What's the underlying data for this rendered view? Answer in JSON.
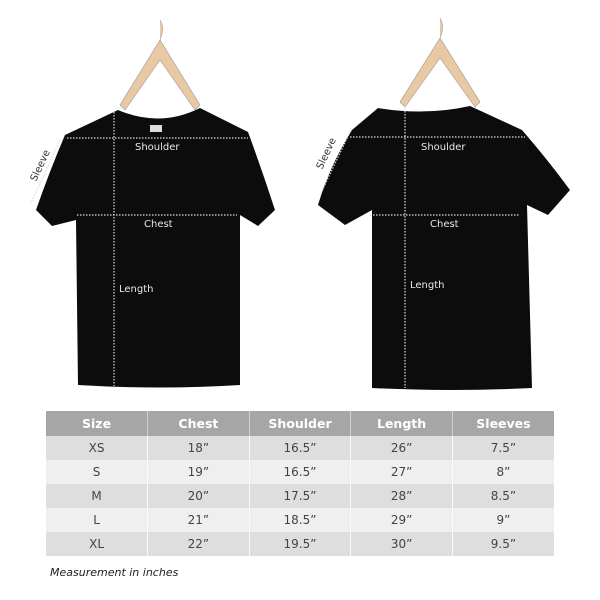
{
  "diagram": {
    "front": {
      "shoulder": "Shoulder",
      "chest": "Chest",
      "length": "Length",
      "sleeve": "Sleeve"
    },
    "back": {
      "shoulder": "Shoulder",
      "chest": "Chest",
      "length": "Length",
      "sleeve": "Sleeve"
    },
    "shirt_color": "#0c0c0c",
    "hanger_color": "#e9c9a4"
  },
  "size_chart": {
    "headers": [
      "Size",
      "Chest",
      "Shoulder",
      "Length",
      "Sleeves"
    ],
    "rows": [
      [
        "XS",
        "18”",
        "16.5”",
        "26”",
        "7.5”"
      ],
      [
        "S",
        "19”",
        "16.5”",
        "27”",
        "8”"
      ],
      [
        "M",
        "20”",
        "17.5”",
        "28”",
        "8.5”"
      ],
      [
        "L",
        "21”",
        "18.5”",
        "29”",
        "9”"
      ],
      [
        "XL",
        "22”",
        "19.5”",
        "30”",
        "9.5”"
      ]
    ],
    "header_color": "#a6a6a6"
  },
  "note": "Measurement in inches"
}
